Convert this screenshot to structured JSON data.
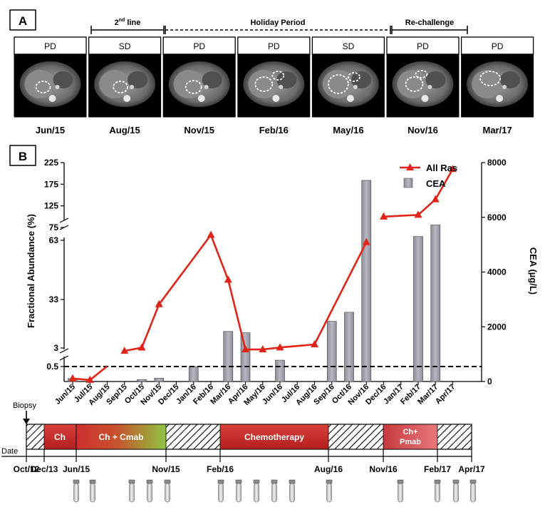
{
  "panelA": {
    "label": "A",
    "phases": {
      "second_line": {
        "main": "2",
        "sup": "nd",
        "rest": " line"
      },
      "holiday": "Holiday Period",
      "rechallenge": "Re-challenge"
    },
    "scans": [
      {
        "status": "PD",
        "date": "Jun/15"
      },
      {
        "status": "SD",
        "date": "Aug/15"
      },
      {
        "status": "PD",
        "date": "Nov/15"
      },
      {
        "status": "PD",
        "date": "Feb/16"
      },
      {
        "status": "SD",
        "date": "May/16"
      },
      {
        "status": "PD",
        "date": "Nov/16"
      },
      {
        "status": "PD",
        "date": "Mar/17"
      }
    ]
  },
  "panelB": {
    "label": "B"
  },
  "chart_data": {
    "type": "bar+line",
    "categories": [
      "Jun/15",
      "Jul/15",
      "Aug/15",
      "Sep/15",
      "Oct/15",
      "Nov/15",
      "Dec/15",
      "Jan/16",
      "Feb/16",
      "Mar/16",
      "Apr/16",
      "May/16",
      "Jun/16",
      "Jul/16",
      "Aug/16",
      "Sep/16",
      "Oct/16",
      "Nov/16",
      "Dec/16",
      "Jan/17",
      "Feb/17",
      "Mar/17",
      "Apr/17"
    ],
    "ylabel_left": "Fractional Abundance (%)",
    "ylabel_right": "CEA (µg/L)",
    "left_ticks": [
      "0.5",
      "3",
      "33",
      "63",
      "75",
      "125",
      "175",
      "225"
    ],
    "right_ticks": [
      "0",
      "2000",
      "4000",
      "6000",
      "8000"
    ],
    "right_ylim": [
      0,
      8000
    ],
    "threshold": 0.5,
    "legend": {
      "line": "All Ras",
      "bar": "CEA",
      "position": "top-right"
    },
    "series": [
      {
        "name": "CEA",
        "type": "bar",
        "values": [
          110,
          null,
          null,
          null,
          70,
          120,
          null,
          540,
          null,
          1830,
          1780,
          null,
          780,
          null,
          null,
          2200,
          2530,
          7350,
          null,
          null,
          5300,
          5720,
          null
        ]
      },
      {
        "name": "All Ras",
        "type": "line",
        "values": [
          0.1,
          0.05,
          0.55,
          2.6,
          3.2,
          30,
          null,
          null,
          68,
          43,
          2.8,
          2.8,
          3.3,
          null,
          5.2,
          null,
          null,
          62,
          100,
          null,
          104,
          140,
          210
        ]
      }
    ]
  },
  "timeline": {
    "biopsy": "Biopsy",
    "date_label": "Date",
    "dates": [
      "Oct/12",
      "Dec/13",
      "Jun/15",
      "Nov/15",
      "Feb/16",
      "Aug/16",
      "Nov/16",
      "Feb/17",
      "Apr/17"
    ],
    "therapies": [
      {
        "label": "Ch"
      },
      {
        "label": "Ch + Cmab"
      },
      {
        "label": "Chemotherapy"
      },
      {
        "label_line1": "Ch+",
        "label_line2": "Pmab"
      }
    ],
    "sample_count": 15
  }
}
